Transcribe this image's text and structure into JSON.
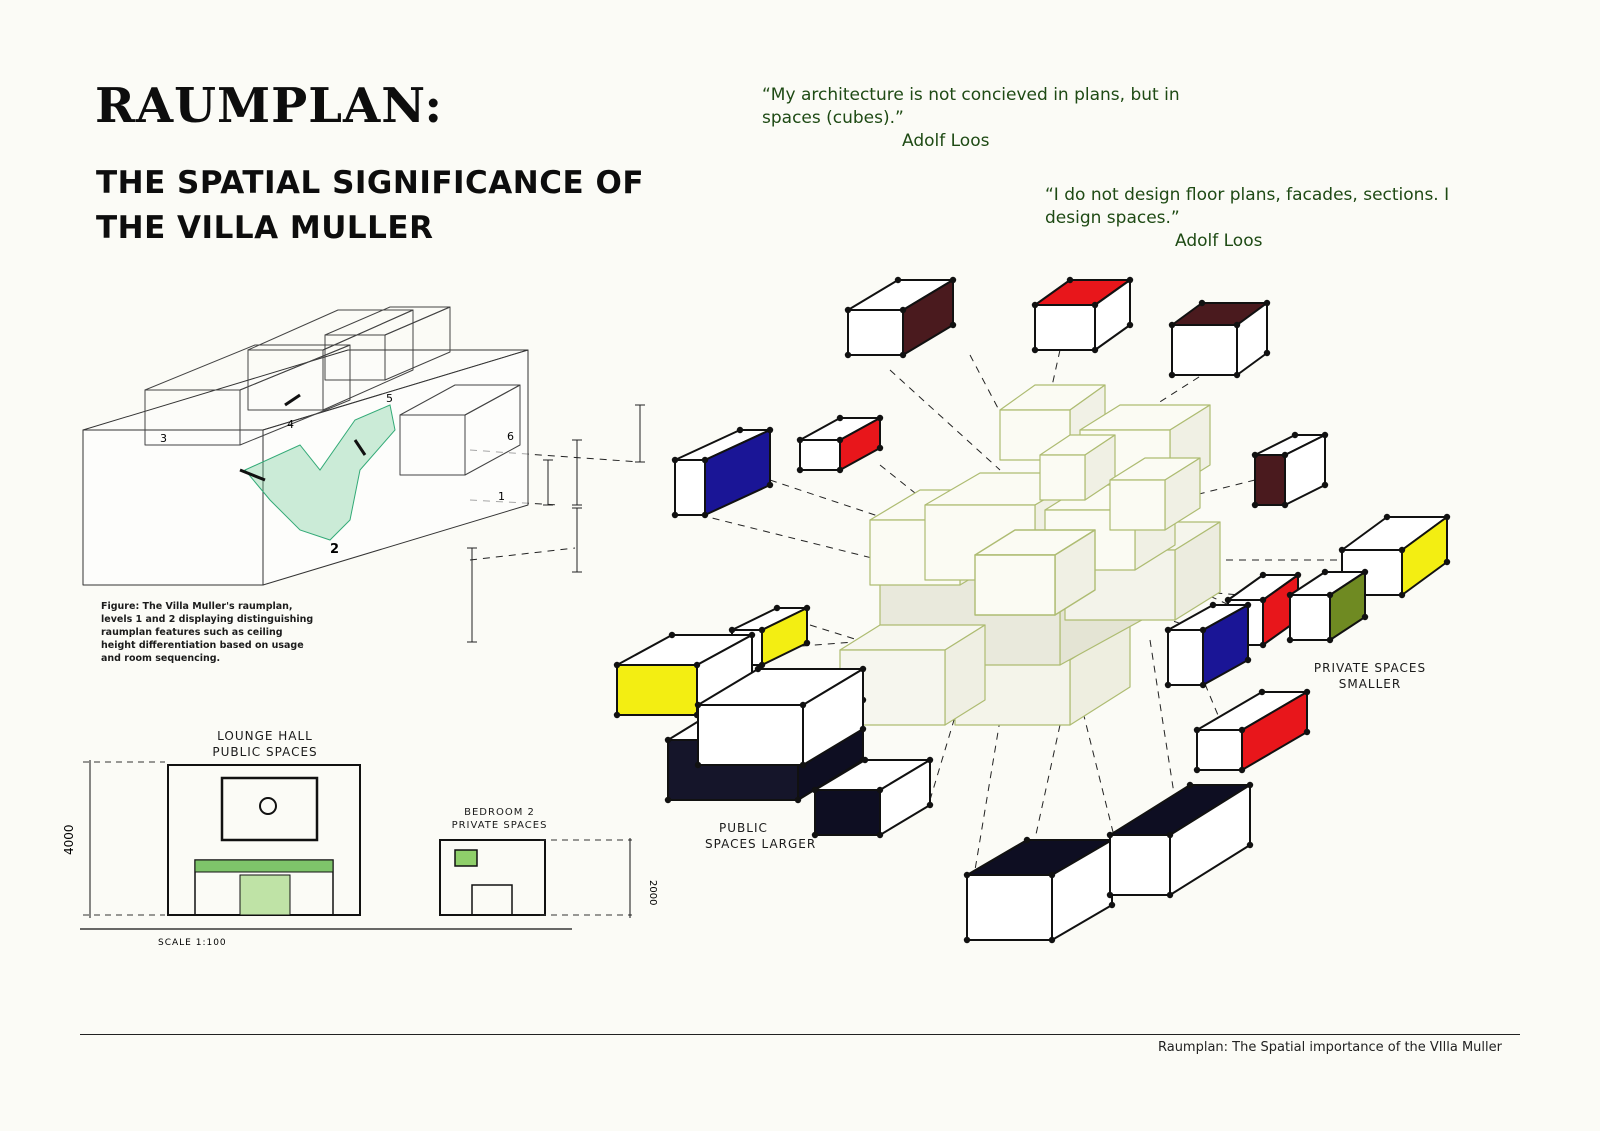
{
  "title": "RAUMPLAN:",
  "subtitle_line1": "THE SPATIAL SIGNIFICANCE OF",
  "subtitle_line2": "THE VILLA MULLER",
  "quotes": [
    {
      "text_line1": "“My architecture is not concieved in plans, but in",
      "text_line2": "spaces (cubes).”",
      "author": "Adolf Loos"
    },
    {
      "text_line1": "“I do not design floor plans, facades, sections. I",
      "text_line2": "design spaces.”",
      "author": "Adolf Loos"
    }
  ],
  "figure_caption": "Figure: The Villa Muller's raumplan, levels 1 and 2 displaying distinguishing raumplan features such as ceiling height differentiation based on usage and room sequencing.",
  "axo_numbers": [
    "1",
    "2",
    "3",
    "4",
    "5",
    "6"
  ],
  "section": {
    "lounge_label_line1": "LOUNGE HALL",
    "lounge_label_line2": "PUBLIC SPACES",
    "bedroom_label_line1": "BEDROOM 2",
    "bedroom_label_line2": "PRIVATE SPACES",
    "dim_lounge": "4000",
    "dim_bedroom": "2000",
    "scale": "SCALE 1:100"
  },
  "annotations": {
    "public_line1": "PUBLIC",
    "public_line2": "SPACES LARGER",
    "private_line1": "PRIVATE SPACES",
    "private_line2": "SMALLER"
  },
  "colors": {
    "red": "#e8161b",
    "yellow": "#f3ee12",
    "blue": "#1a1596",
    "maroon": "#4a1a1e",
    "navy": "#0e0e22",
    "olive": "#6f8a22",
    "green_line": "#aebc72",
    "quote_green": "#1e4a14"
  },
  "footer": "Raumplan: The Spatial importance of the VIlla Muller"
}
